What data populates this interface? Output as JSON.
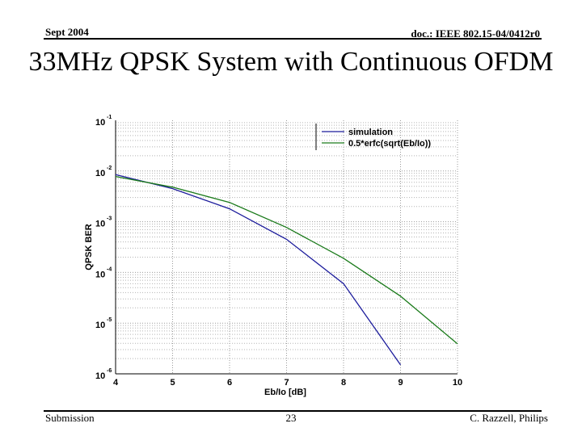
{
  "header": {
    "left": "Sept 2004",
    "right": "doc.: IEEE 802.15-04/0412r0"
  },
  "slide_title": "33MHz QPSK System with Continuous OFDM",
  "footer": {
    "left": "Submission",
    "page": "23",
    "right": "C. Razzell, Philips"
  },
  "colors": {
    "simulation": "#1c1c9c",
    "theory": "#1a7a1a",
    "grid_major": "#9a9a9a",
    "grid_minor": "#b4b4b4"
  },
  "chart_data": {
    "type": "line",
    "title": "",
    "xlabel": "Eb/Io [dB]",
    "ylabel": "QPSK BER",
    "xlim": [
      4,
      10
    ],
    "ylim_exponent": [
      -6,
      -1
    ],
    "y_scale": "log",
    "x_ticks": [
      "4",
      "5",
      "6",
      "7",
      "8",
      "9",
      "10"
    ],
    "y_ticks": [
      {
        "base": "10",
        "exp": "-1"
      },
      {
        "base": "10",
        "exp": "-2"
      },
      {
        "base": "10",
        "exp": "-3"
      },
      {
        "base": "10",
        "exp": "-4"
      },
      {
        "base": "10",
        "exp": "-5"
      },
      {
        "base": "10",
        "exp": "-6"
      }
    ],
    "grid": true,
    "legend_position": "top-right",
    "series": [
      {
        "name": "simulation",
        "x": [
          4,
          5,
          6,
          7,
          8,
          9
        ],
        "y": [
          0.0085,
          0.0045,
          0.0018,
          0.00045,
          6e-05,
          1.5e-06
        ]
      },
      {
        "name": "0.5*erfc(sqrt(Eb/Io))",
        "x": [
          4,
          5,
          6,
          7,
          8,
          9,
          10
        ],
        "y": [
          0.0078,
          0.0048,
          0.0024,
          0.00077,
          0.00019,
          3.4e-05,
          3.9e-06
        ]
      }
    ]
  }
}
